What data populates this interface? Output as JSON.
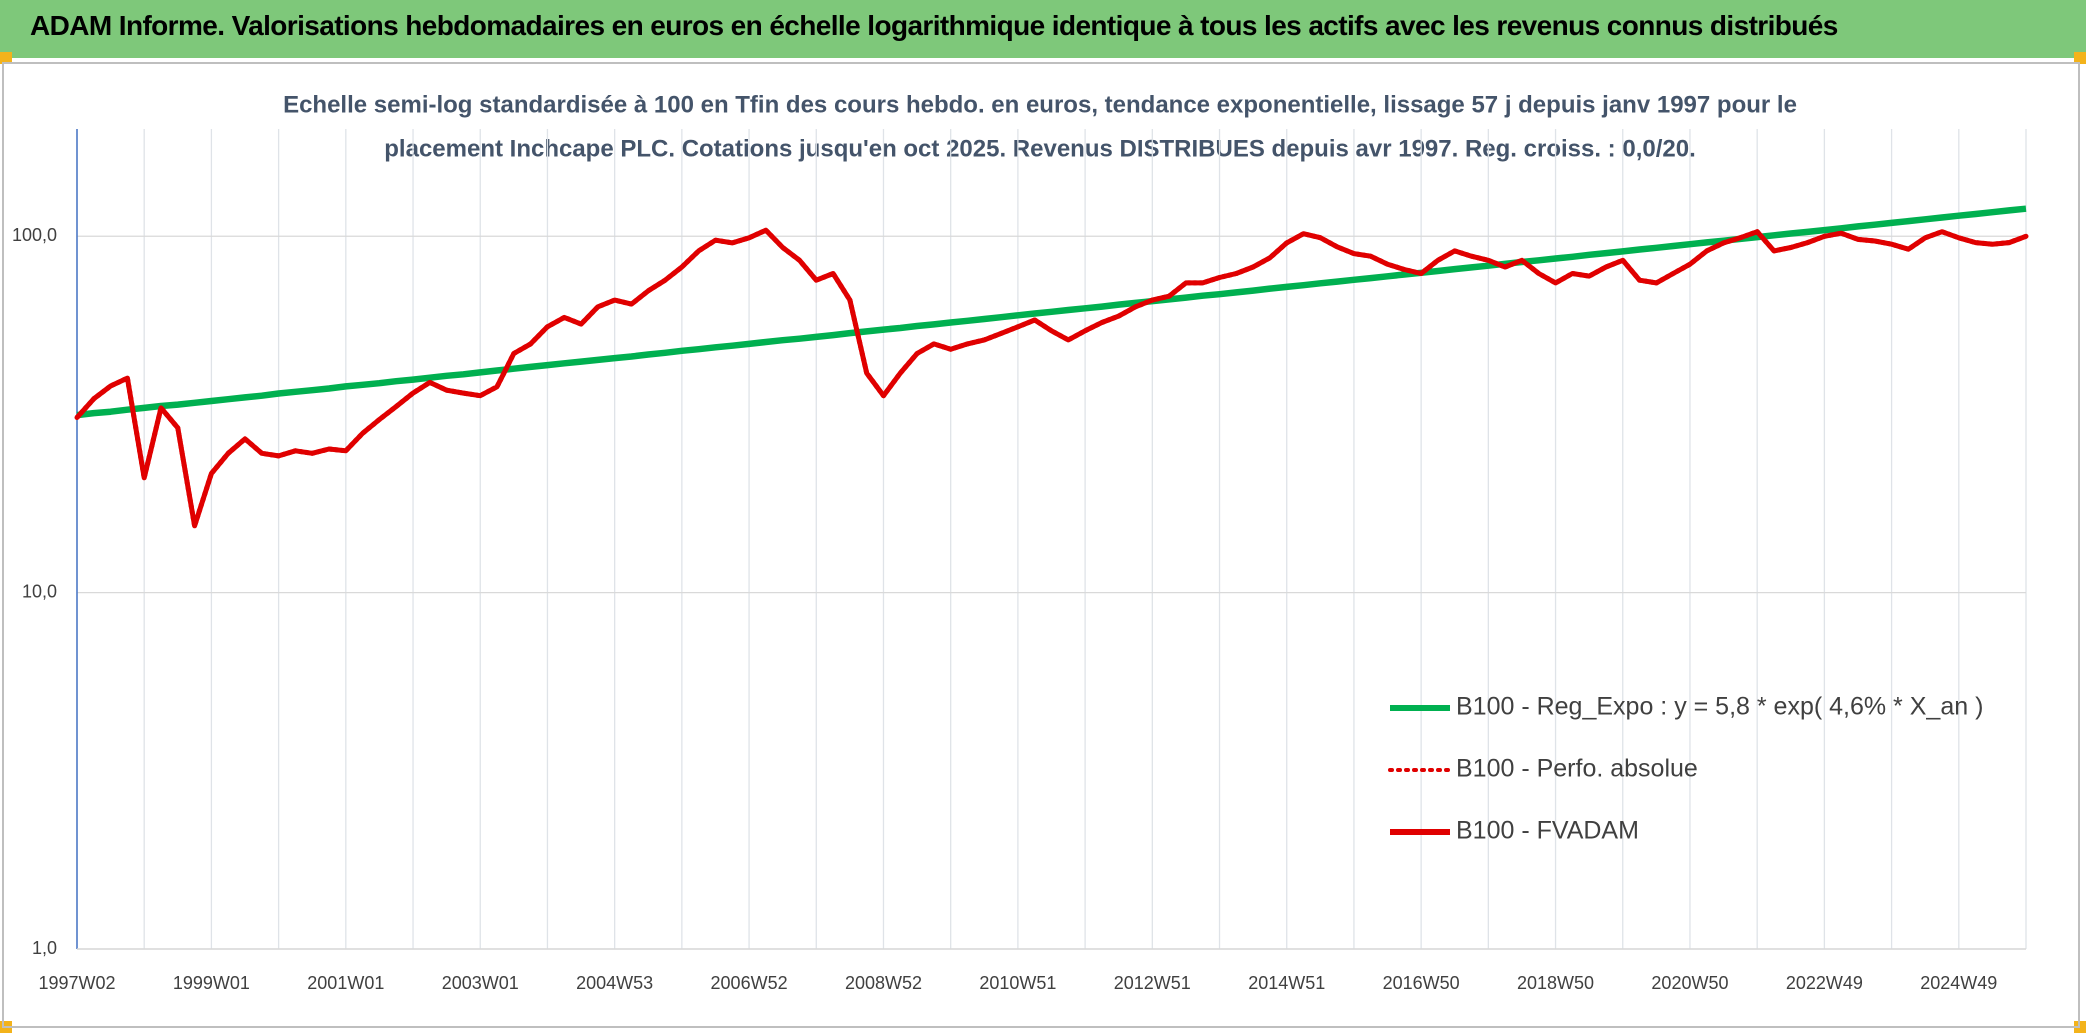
{
  "header": {
    "title": "ADAM Informe. Valorisations hebdomadaires en euros en échelle logarithmique identique à tous les actifs avec les revenus connus distribués"
  },
  "chart_data": {
    "type": "line",
    "subtitle": [
      "Echelle semi-log standardisée à 100 en Tfin des cours hebdo. en euros, tendance exponentielle, lissage 57 j depuis janv 1997 pour le",
      "placement Inchcape PLC. Cotations jusqu'en oct 2025. Revenus DISTRIBUES depuis avr 1997. Reg. croiss. : 0,0/20."
    ],
    "log_scale": true,
    "grid": true,
    "legend": "right",
    "ylim": [
      1,
      200
    ],
    "yticks": [
      {
        "value": 1,
        "label": "1,0"
      },
      {
        "value": 10,
        "label": "10,0"
      },
      {
        "value": 100,
        "label": "100,0"
      }
    ],
    "categories": [
      "1997W02",
      null,
      null,
      null,
      null,
      null,
      null,
      null,
      "1999W01",
      null,
      null,
      null,
      null,
      null,
      null,
      null,
      "2001W01",
      null,
      null,
      null,
      null,
      null,
      null,
      null,
      "2003W01",
      null,
      null,
      null,
      null,
      null,
      null,
      null,
      "2004W53",
      null,
      null,
      null,
      null,
      null,
      null,
      null,
      "2006W52",
      null,
      null,
      null,
      null,
      null,
      null,
      null,
      "2008W52",
      null,
      null,
      null,
      null,
      null,
      null,
      null,
      "2010W51",
      null,
      null,
      null,
      null,
      null,
      null,
      null,
      "2012W51",
      null,
      null,
      null,
      null,
      null,
      null,
      null,
      "2014W51",
      null,
      null,
      null,
      null,
      null,
      null,
      null,
      "2016W50",
      null,
      null,
      null,
      null,
      null,
      null,
      null,
      "2018W50",
      null,
      null,
      null,
      null,
      null,
      null,
      null,
      "2020W50",
      null,
      null,
      null,
      null,
      null,
      null,
      null,
      "2022W49",
      null,
      null,
      null,
      null,
      null,
      null,
      null,
      "2024W49",
      null,
      null,
      null,
      null
    ],
    "series": [
      {
        "name": "B100 - Reg_Expo : y = 5,8 * exp( 4,6% *  X_an )",
        "color": "#00b050",
        "style": "solid",
        "values": [
          31.5,
          31.9,
          32.2,
          32.6,
          33.0,
          33.4,
          33.7,
          34.1,
          34.5,
          34.9,
          35.3,
          35.7,
          36.2,
          36.6,
          37.0,
          37.4,
          37.9,
          38.3,
          38.7,
          39.2,
          39.6,
          40.1,
          40.6,
          41.0,
          41.5,
          42.0,
          42.5,
          43.0,
          43.5,
          44.0,
          44.5,
          45.0,
          45.5,
          46.0,
          46.6,
          47.1,
          47.7,
          48.2,
          48.8,
          49.3,
          49.9,
          50.5,
          51.1,
          51.6,
          52.2,
          52.8,
          53.5,
          54.1,
          54.7,
          55.3,
          56.0,
          56.6,
          57.3,
          57.9,
          58.6,
          59.3,
          60.0,
          60.7,
          61.4,
          62.1,
          62.8,
          63.5,
          64.3,
          65.0,
          65.8,
          66.5,
          67.3,
          68.1,
          68.8,
          69.6,
          70.4,
          71.3,
          72.1,
          72.9,
          73.8,
          74.6,
          75.5,
          76.3,
          77.2,
          78.1,
          79.0,
          79.9,
          80.9,
          81.8,
          82.7,
          83.7,
          84.7,
          85.6,
          86.6,
          87.6,
          88.7,
          89.7,
          90.7,
          91.8,
          92.8,
          93.9,
          95.0,
          96.1,
          97.2,
          98.3,
          99.5,
          100.6,
          101.8,
          102.9,
          104.1,
          105.3,
          106.6,
          107.8,
          109.0,
          110.3,
          111.6,
          112.9,
          114.2,
          115.5,
          116.8,
          118.2,
          119.5
        ]
      },
      {
        "name": "B100 - Perfo. absolue",
        "color": "#e00000",
        "style": "dotted",
        "values": [
          31,
          35,
          38,
          40,
          21,
          33,
          29,
          15.4,
          21.6,
          24.6,
          27,
          24.6,
          24.2,
          25,
          24.6,
          25.3,
          25,
          28,
          30.6,
          33.3,
          36.3,
          38.9,
          37,
          36.3,
          35.7,
          37.8,
          46.9,
          49.9,
          55.7,
          59.2,
          56.7,
          63.4,
          66.2,
          64.5,
          70.3,
          75.3,
          82,
          91,
          97.5,
          95.8,
          99,
          104,
          93,
          85.6,
          75.3,
          78.6,
          66.2,
          41.3,
          35.7,
          41.3,
          46.9,
          49.9,
          48.2,
          49.9,
          51.2,
          53.4,
          55.7,
          58.2,
          54.3,
          51.2,
          54.3,
          57.3,
          59.7,
          63.4,
          66.2,
          67.9,
          74,
          74,
          76.6,
          78.6,
          82,
          87,
          95.8,
          101.7,
          99.1,
          93.4,
          89.4,
          87.9,
          83.5,
          80.7,
          78.6,
          85.6,
          91,
          87.9,
          85.6,
          82,
          85.6,
          78.6,
          74,
          78.6,
          77.3,
          82,
          85.6,
          75.3,
          74,
          78.6,
          83.5,
          91,
          95.8,
          99.1,
          103,
          91,
          93,
          96,
          100,
          102,
          98,
          97,
          95,
          92,
          99,
          103,
          99,
          96,
          95,
          96,
          100
        ]
      },
      {
        "name": "B100 - FVADAM",
        "color": "#e00000",
        "style": "solid",
        "values": [
          31,
          35,
          38,
          40,
          21,
          33,
          29,
          15.4,
          21.6,
          24.6,
          27,
          24.6,
          24.2,
          25,
          24.6,
          25.3,
          25,
          28,
          30.6,
          33.3,
          36.3,
          38.9,
          37,
          36.3,
          35.7,
          37.8,
          46.9,
          49.9,
          55.7,
          59.2,
          56.7,
          63.4,
          66.2,
          64.5,
          70.3,
          75.3,
          82,
          91,
          97.5,
          95.8,
          99,
          104,
          93,
          85.6,
          75.3,
          78.6,
          66.2,
          41.3,
          35.7,
          41.3,
          46.9,
          49.9,
          48.2,
          49.9,
          51.2,
          53.4,
          55.7,
          58.2,
          54.3,
          51.2,
          54.3,
          57.3,
          59.7,
          63.4,
          66.2,
          67.9,
          74,
          74,
          76.6,
          78.6,
          82,
          87,
          95.8,
          101.7,
          99.1,
          93.4,
          89.4,
          87.9,
          83.5,
          80.7,
          78.6,
          85.6,
          91,
          87.9,
          85.6,
          82,
          85.6,
          78.6,
          74,
          78.6,
          77.3,
          82,
          85.6,
          75.3,
          74,
          78.6,
          83.5,
          91,
          95.8,
          99.1,
          103,
          91,
          93,
          96,
          100,
          102,
          98,
          97,
          95,
          92,
          99,
          103,
          99,
          96,
          95,
          96,
          100
        ]
      }
    ]
  }
}
